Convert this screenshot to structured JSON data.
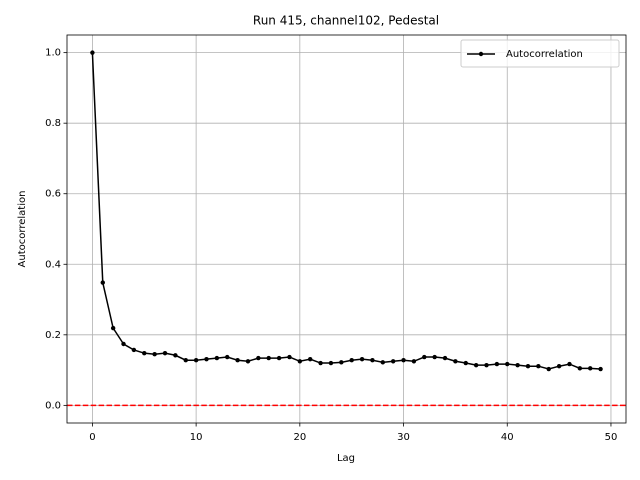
{
  "chart_data": {
    "type": "line",
    "title": "Run 415, channel102, Pedestal",
    "xlabel": "Lag",
    "ylabel": "Autocorrelation",
    "x": [
      0,
      1,
      2,
      3,
      4,
      5,
      6,
      7,
      8,
      9,
      10,
      11,
      12,
      13,
      14,
      15,
      16,
      17,
      18,
      19,
      20,
      21,
      22,
      23,
      24,
      25,
      26,
      27,
      28,
      29,
      30,
      31,
      32,
      33,
      34,
      35,
      36,
      37,
      38,
      39,
      40,
      41,
      42,
      43,
      44,
      45,
      46,
      47,
      48,
      49
    ],
    "series": [
      {
        "name": "Autocorrelation",
        "color": "#000000",
        "marker": "circle",
        "values": [
          1.0,
          0.348,
          0.219,
          0.174,
          0.157,
          0.148,
          0.145,
          0.148,
          0.142,
          0.128,
          0.128,
          0.131,
          0.134,
          0.137,
          0.128,
          0.125,
          0.134,
          0.134,
          0.134,
          0.137,
          0.125,
          0.131,
          0.12,
          0.12,
          0.122,
          0.128,
          0.131,
          0.128,
          0.122,
          0.125,
          0.128,
          0.125,
          0.137,
          0.137,
          0.134,
          0.125,
          0.12,
          0.114,
          0.114,
          0.117,
          0.117,
          0.114,
          0.111,
          0.111,
          0.103,
          0.111,
          0.117,
          0.105,
          0.105,
          0.103
        ]
      }
    ],
    "hlines": [
      {
        "value": 0,
        "color": "#ff0000",
        "style": "dashed"
      }
    ],
    "xlim": [
      -2.45,
      51.45
    ],
    "xticks": [
      0,
      10,
      20,
      30,
      40,
      50
    ],
    "ylim": [
      -0.05,
      1.05
    ],
    "yticks": [
      {
        "value": 0,
        "label": "0.0"
      },
      {
        "value": 0.2,
        "label": "0.2"
      },
      {
        "value": 0.4,
        "label": "0.4"
      },
      {
        "value": 0.6,
        "label": "0.6"
      },
      {
        "value": 0.8,
        "label": "0.8"
      },
      {
        "value": 1.0,
        "label": "1.0"
      }
    ],
    "grid": true,
    "legend": "upper right"
  }
}
